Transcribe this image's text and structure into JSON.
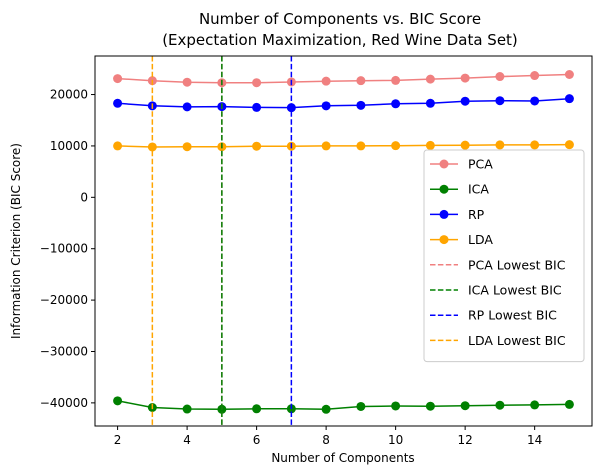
{
  "chart_data": {
    "type": "line",
    "title": "Number of Components vs. BIC Score",
    "subtitle": "(Expectation Maximization, Red Wine Data Set)",
    "xlabel": "Number of Components",
    "ylabel": "Information Criterion (BIC Score)",
    "x": [
      2,
      3,
      4,
      5,
      6,
      7,
      8,
      9,
      10,
      11,
      12,
      13,
      14,
      15
    ],
    "xlim": [
      1.35,
      15.65
    ],
    "ylim": [
      -44500,
      27500
    ],
    "xticks": [
      2,
      4,
      6,
      8,
      10,
      12,
      14
    ],
    "yticks": [
      -40000,
      -30000,
      -20000,
      -10000,
      0,
      10000,
      20000
    ],
    "grid": false,
    "legend_position": "center-right",
    "series": [
      {
        "name": "PCA",
        "color": "#f08080",
        "values": [
          23100,
          22700,
          22400,
          22300,
          22300,
          22450,
          22600,
          22700,
          22750,
          23000,
          23200,
          23500,
          23700,
          23900
        ]
      },
      {
        "name": "ICA",
        "color": "#008000",
        "values": [
          -39600,
          -40900,
          -41200,
          -41250,
          -41150,
          -41150,
          -41250,
          -40700,
          -40600,
          -40650,
          -40550,
          -40450,
          -40400,
          -40300
        ]
      },
      {
        "name": "RP",
        "color": "#0000ff",
        "values": [
          18300,
          17800,
          17600,
          17650,
          17500,
          17450,
          17800,
          17900,
          18200,
          18300,
          18700,
          18800,
          18750,
          19200
        ]
      },
      {
        "name": "LDA",
        "color": "#ffa500",
        "values": [
          10000,
          9800,
          9850,
          9850,
          9950,
          9950,
          10000,
          10000,
          10050,
          10100,
          10150,
          10200,
          10200,
          10250
        ]
      }
    ],
    "vlines": [
      {
        "name": "PCA Lowest BIC",
        "color": "#f08080",
        "x": 5
      },
      {
        "name": "ICA Lowest BIC",
        "color": "#008000",
        "x": 5
      },
      {
        "name": "RP Lowest BIC",
        "color": "#0000ff",
        "x": 7
      },
      {
        "name": "LDA Lowest BIC",
        "color": "#ffa500",
        "x": 3
      }
    ]
  }
}
